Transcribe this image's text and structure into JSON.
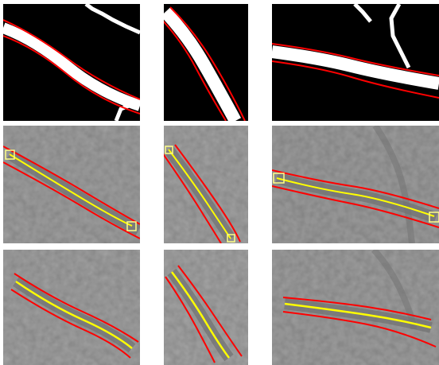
{
  "figure": {
    "rows": [
      "segmentation-mask",
      "detection-with-endpoints",
      "detection-centerline"
    ],
    "columns": 3,
    "colors": {
      "mask_background": "#000000",
      "mask_vessel": "#ffffff",
      "boundary": "#ff0000",
      "centerline": "#ffff00",
      "endpoint_box": "#ffff88",
      "tissue_gray": "#9a9a9a",
      "vessel_gray": "#6f6f6f"
    }
  }
}
